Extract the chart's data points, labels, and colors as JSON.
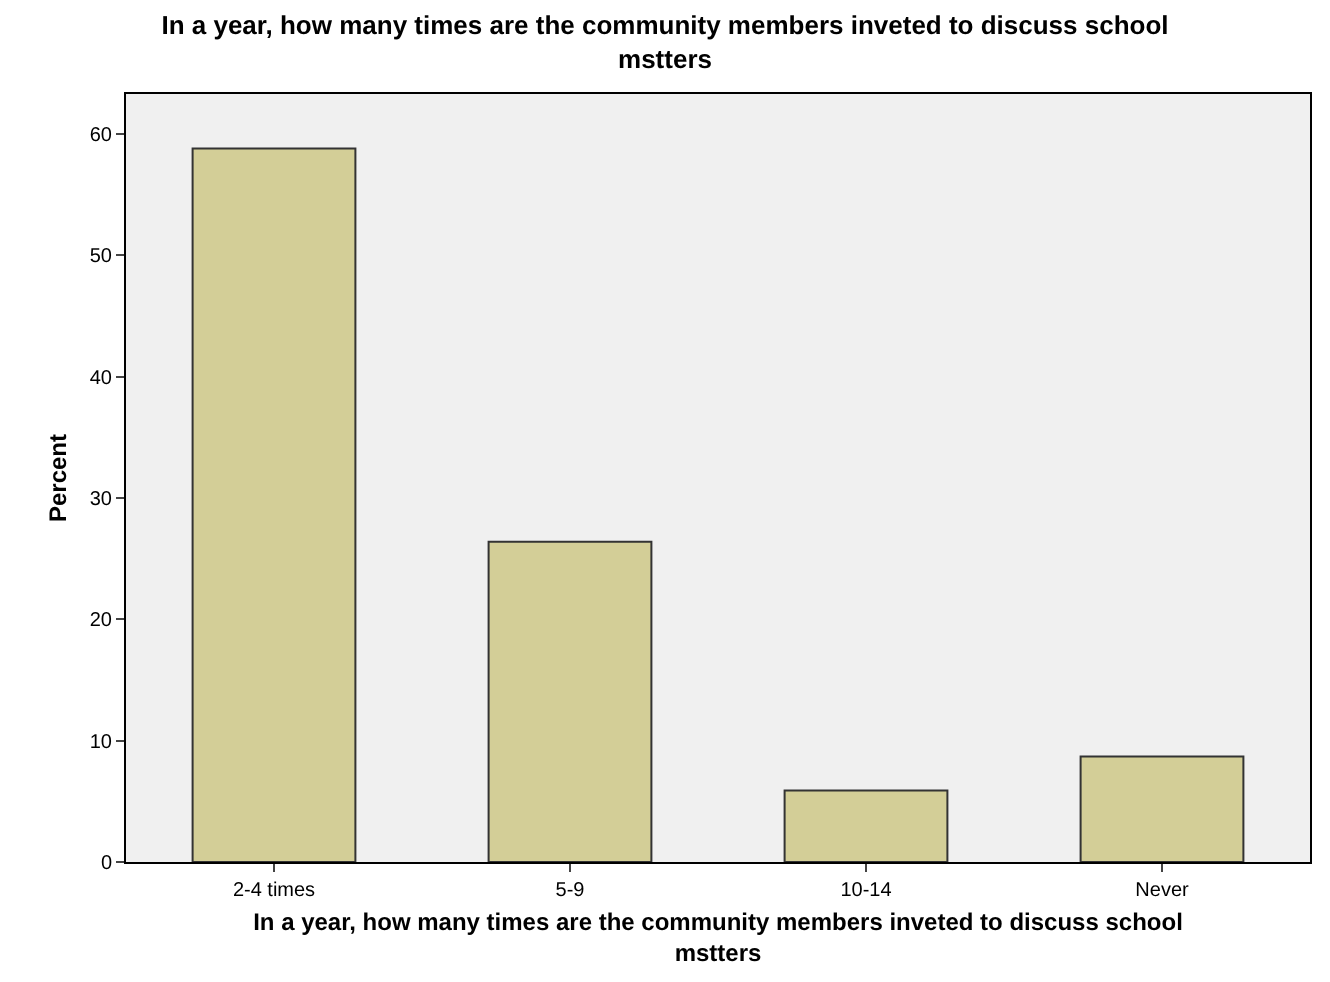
{
  "chart_data": {
    "type": "bar",
    "title": "In a year, how many times are the community members inveted to discuss school mstters",
    "xlabel": "In a year, how many times are the community members inveted to discuss school mstters",
    "ylabel": "Percent",
    "categories": [
      "2-4 times",
      "5-9",
      "10-14",
      "Never"
    ],
    "values": [
      58.8,
      26.4,
      5.9,
      8.7
    ],
    "color": "#d3ce97",
    "ylim": [
      0,
      63.3
    ],
    "yticks": [
      0,
      10,
      20,
      30,
      40,
      50,
      60
    ],
    "grid": false
  }
}
